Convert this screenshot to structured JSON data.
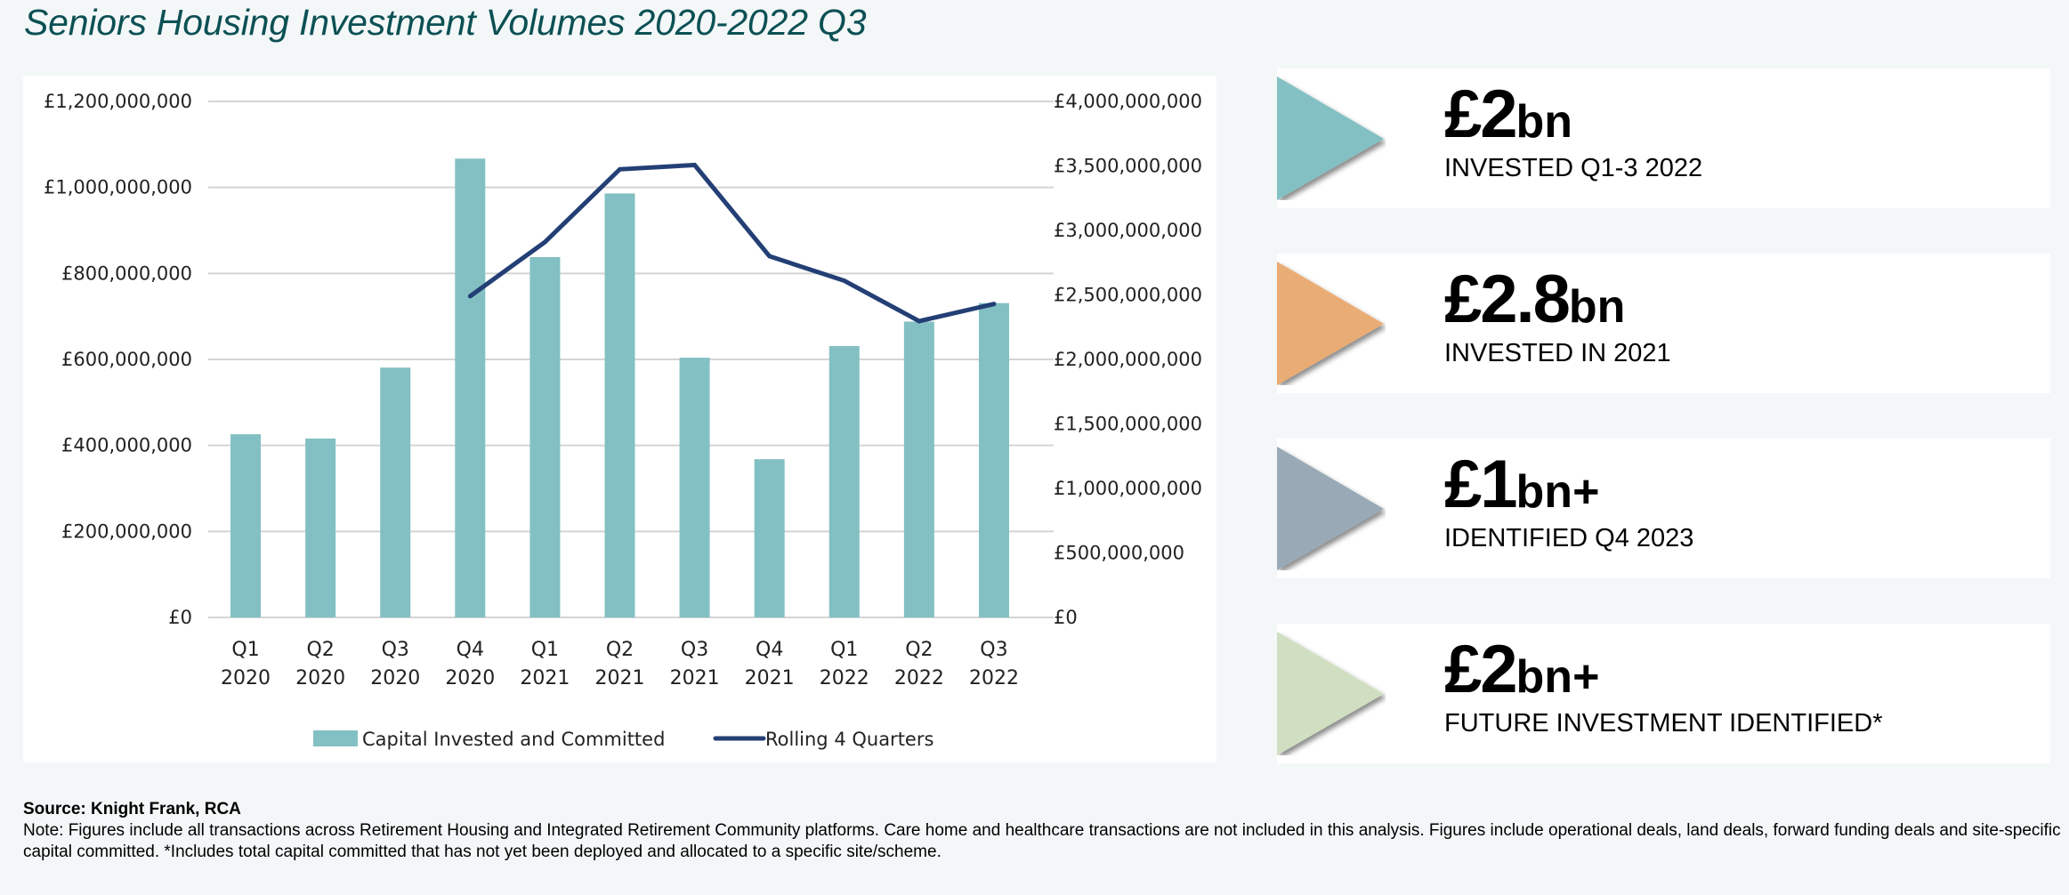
{
  "title": "Seniors Housing Investment Volumes 2020-2022 Q3",
  "chart_data": {
    "type": "bar",
    "title": "Seniors Housing Investment Volumes 2020-2022 Q3",
    "categories": [
      [
        "Q1",
        "2020"
      ],
      [
        "Q2",
        "2020"
      ],
      [
        "Q3",
        "2020"
      ],
      [
        "Q4",
        "2020"
      ],
      [
        "Q1",
        "2021"
      ],
      [
        "Q2",
        "2021"
      ],
      [
        "Q3",
        "2021"
      ],
      [
        "Q4",
        "2021"
      ],
      [
        "Q1",
        "2022"
      ],
      [
        "Q2",
        "2022"
      ],
      [
        "Q3",
        "2022"
      ]
    ],
    "series": [
      {
        "name": "Capital Invested and Committed",
        "type": "bar",
        "axis": "left",
        "color": "#83c0c3",
        "values": [
          426000000,
          416000000,
          581000000,
          1067000000,
          838000000,
          986000000,
          604000000,
          368000000,
          631000000,
          688000000,
          731000000
        ]
      },
      {
        "name": "Rolling 4 Quarters",
        "type": "line",
        "axis": "right",
        "color": "#233f75",
        "values": [
          null,
          null,
          null,
          2490000000,
          2910000000,
          3474000000,
          3507000000,
          2800000000,
          2610000000,
          2297000000,
          2430000000
        ]
      }
    ],
    "left_axis": {
      "range": [
        0,
        1200000000
      ],
      "ticks": [
        "£0",
        "£200,000,000",
        "£400,000,000",
        "£600,000,000",
        "£800,000,000",
        "£1,000,000,000",
        "£1,200,000,000"
      ]
    },
    "right_axis": {
      "range": [
        0,
        4000000000
      ],
      "ticks": [
        "£0",
        "£500,000,000",
        "£1,000,000,000",
        "£1,500,000,000",
        "£2,000,000,000",
        "£2,500,000,000",
        "£3,000,000,000",
        "£3,500,000,000",
        "£4,000,000,000"
      ]
    },
    "grid": true,
    "legend": "bottom",
    "xlabel": "",
    "ylabel": ""
  },
  "stats": [
    {
      "value": "£2",
      "unit": "bn",
      "label": "INVESTED Q1-3 2022",
      "color": "#83c0c3"
    },
    {
      "value": "£2.8",
      "unit": "bn",
      "label": "INVESTED IN 2021",
      "color": "#eaac74"
    },
    {
      "value": "£1",
      "unit": "bn+",
      "label": "IDENTIFIED Q4 2023",
      "color": "#99aab6"
    },
    {
      "value": "£2",
      "unit": "bn+",
      "label": "FUTURE INVESTMENT IDENTIFIED*",
      "color": "#d0dfc1"
    }
  ],
  "footer": {
    "source": "Source: Knight Frank, RCA",
    "note": "Note: Figures include all transactions across Retirement Housing and Integrated Retirement Community platforms. Care home and healthcare transactions are not included in this analysis. Figures include operational deals, land deals, forward funding deals and site-specific capital committed. *Includes total capital committed that has not yet been deployed and allocated to a specific site/scheme."
  }
}
